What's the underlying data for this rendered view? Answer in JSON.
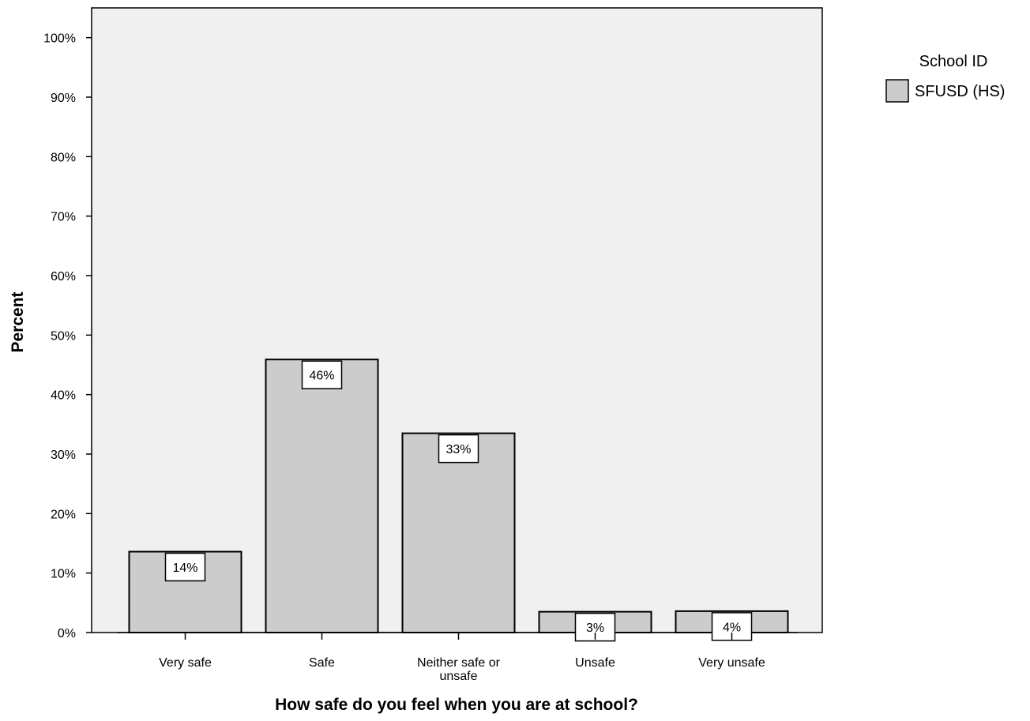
{
  "chart_data": {
    "type": "bar",
    "categories": [
      [
        "Very safe"
      ],
      [
        "Safe"
      ],
      [
        "Neither safe or",
        "unsafe"
      ],
      [
        "Unsafe"
      ],
      [
        "Very unsafe"
      ]
    ],
    "series": [
      {
        "name": "SFUSD (HS)",
        "values": [
          13.6,
          45.9,
          33.5,
          3.5,
          3.6
        ],
        "labels": [
          "14%",
          "46%",
          "33%",
          "3%",
          "4%"
        ]
      }
    ],
    "ylim": [
      0,
      105
    ],
    "yticks": [
      0,
      10,
      20,
      30,
      40,
      50,
      60,
      70,
      80,
      90,
      100
    ],
    "ytick_labels": [
      "0%",
      "10%",
      "20%",
      "30%",
      "40%",
      "50%",
      "60%",
      "70%",
      "80%",
      "90%",
      "100%"
    ],
    "xlabel": "How safe do you feel when you are at school?",
    "ylabel": "Percent",
    "legend_title": "School ID",
    "legend_position": "top-right-outside",
    "grid": false,
    "colors": {
      "plot_background": "#f0f0f0",
      "bar_fill": "#cccccc",
      "bar_stroke": "#000000",
      "label_box": "#ffffff"
    }
  }
}
